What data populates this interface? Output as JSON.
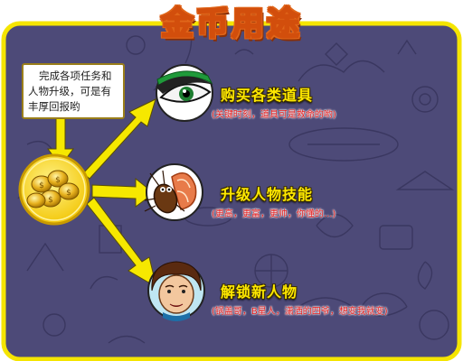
{
  "title": "金币用途",
  "callout": {
    "lines": [
      "完成各项任务和",
      "人物升级，可是有",
      "丰厚回报哟"
    ]
  },
  "entries": [
    {
      "icon": "eye-icon",
      "title": "购买各类道具",
      "subtitle": "(关键时刻，道具可是救命的哟)"
    },
    {
      "icon": "cockroach-steak-icon",
      "title": "升级人物技能",
      "subtitle": "(更高，更富，更帅，你懂的...)"
    },
    {
      "icon": "character-face-icon",
      "title": "解锁新人物",
      "subtitle": "(锅盖哥，B星人，潇洒的四爷，想变我就变)"
    }
  ],
  "colors": {
    "board": "#4d4a78",
    "board_border": "#f5e500",
    "arrow": "#f6e800",
    "title_fill": "#ffffff",
    "title_outline": "#e0661a",
    "entry_title": "#ffe900",
    "entry_subtitle": "#e51a1a"
  }
}
